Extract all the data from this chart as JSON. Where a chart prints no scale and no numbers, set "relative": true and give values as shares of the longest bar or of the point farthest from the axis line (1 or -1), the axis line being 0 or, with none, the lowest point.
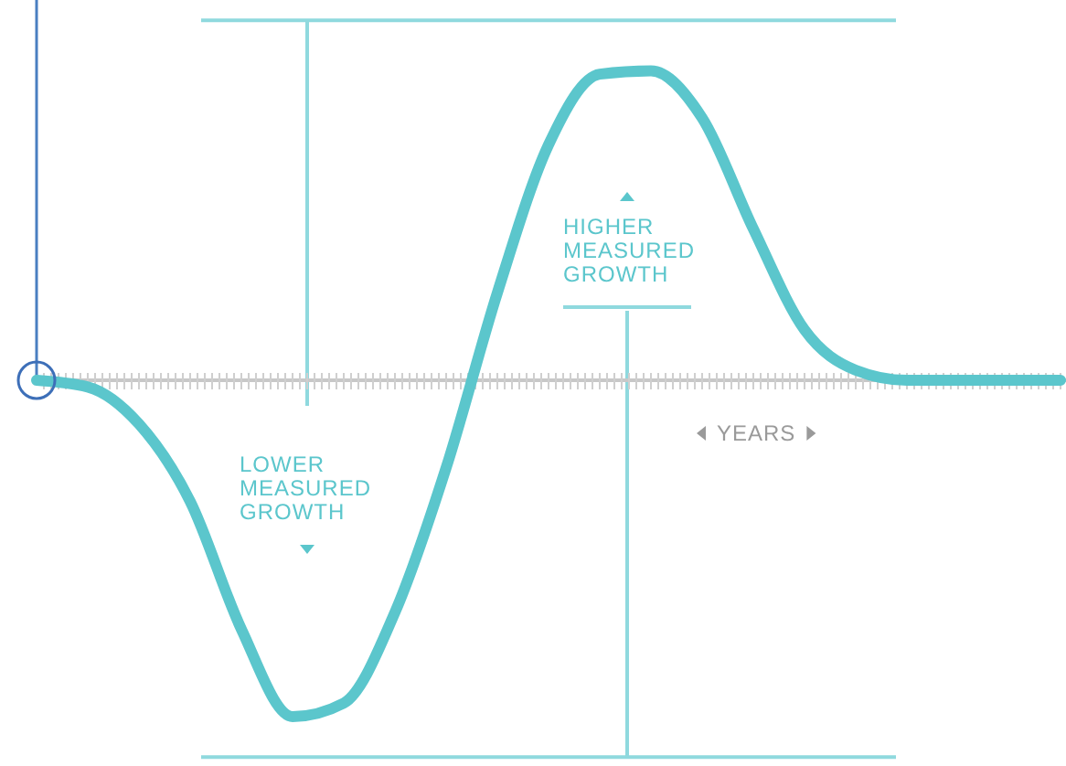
{
  "chart_data": {
    "type": "line",
    "relative": true,
    "categories": [
      null,
      null,
      null,
      null,
      null,
      null,
      null,
      null,
      null,
      null,
      null,
      null,
      null,
      null,
      null,
      null,
      null,
      null,
      null,
      null,
      null
    ],
    "series": [
      {
        "color": "#5bc6cc",
        "values": [
          0,
          -0.02,
          -0.13,
          -0.36,
          -0.74,
          -1,
          -0.96,
          -0.69,
          -0.26,
          0.26,
          0.7,
          0.91,
          0.92,
          0.78,
          0.45,
          0.15,
          0.03,
          0,
          0,
          0,
          0
        ]
      }
    ],
    "ref_lines": [
      {
        "axis": "y",
        "value": 1.07,
        "color": "#8fd9de"
      },
      {
        "axis": "y",
        "value": -1.12,
        "color": "#8fd9de"
      }
    ],
    "annotations": [
      "LOWER MEASURED GROWTH",
      "HIGHER MEASURED GROWTH",
      "YEARS"
    ],
    "marker": "none",
    "line_style": "solid"
  }
}
